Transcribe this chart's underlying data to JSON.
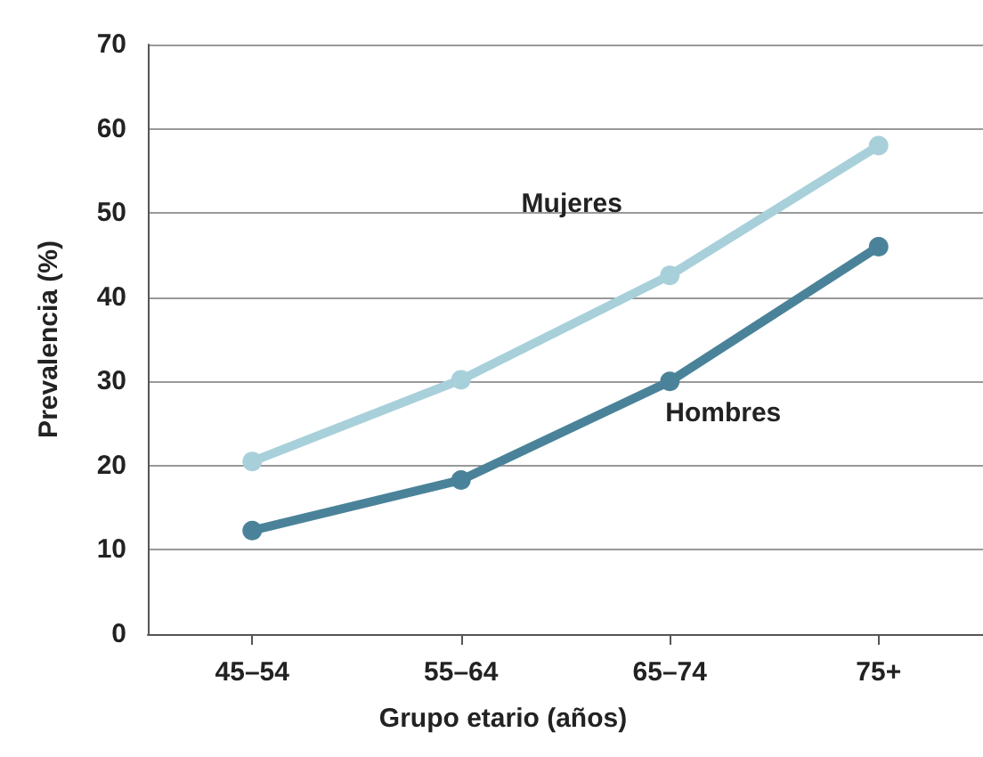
{
  "chart_data": {
    "type": "line",
    "xlabel": "Grupo etario (años)",
    "ylabel": "Prevalencia (%)",
    "categories": [
      "45–54",
      "55–64",
      "65–74",
      "75+"
    ],
    "series": [
      {
        "name": "Mujeres",
        "color": "#a8d0da",
        "values": [
          20.5,
          30.2,
          42.6,
          58
        ]
      },
      {
        "name": "Hombres",
        "color": "#4a8399",
        "values": [
          12.3,
          18.3,
          30,
          46
        ]
      }
    ],
    "ylim": [
      0,
      70
    ],
    "yticks": [
      0,
      10,
      20,
      30,
      40,
      50,
      60,
      70
    ],
    "grid": "y",
    "legend": false,
    "marker": "circle",
    "line_style": "solid"
  }
}
